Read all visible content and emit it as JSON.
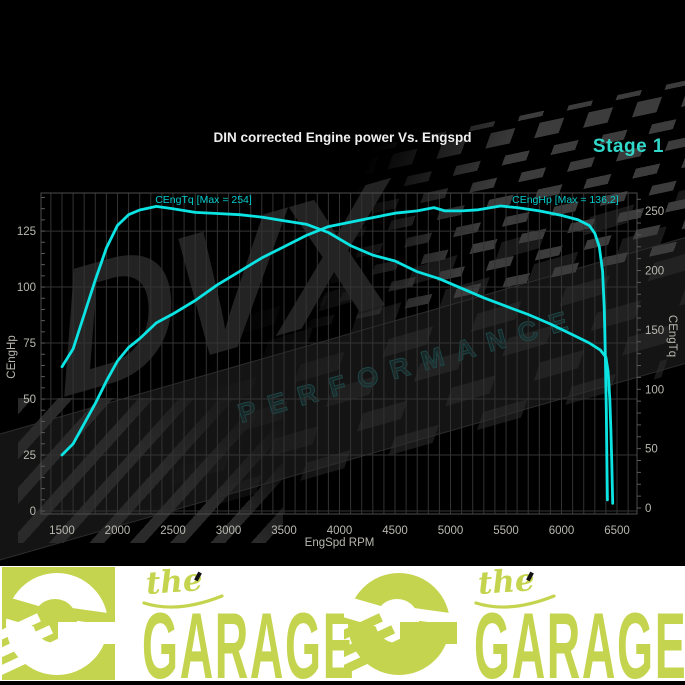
{
  "header": {
    "title": "DIN corrected Engine power Vs. Engspd",
    "stage_label": "Stage 1"
  },
  "watermark": {
    "brand": "DVX",
    "subbrand": "PERFORMANCE"
  },
  "colors": {
    "curve": "#0ce4e4",
    "annotation": "#00cdcd",
    "stage": "#31d8c9",
    "lime": "#c5d44f",
    "grid": "#333333",
    "border": "#4d4d4d",
    "tick_text": "#b9b8af"
  },
  "chart_data": {
    "type": "line",
    "title": "DIN corrected Engine power Vs. Engspd",
    "xlabel": "EngSpd RPM",
    "ylabel_left": "CEngHp",
    "ylabel_right": "CEngTq",
    "x_range": [
      1311,
      6680
    ],
    "left_range": [
      -1.34,
      142.0
    ],
    "right_range": [
      -5.05,
      265.3
    ],
    "x_ticks": [
      1500,
      2000,
      2500,
      3000,
      3500,
      4000,
      4500,
      5000,
      5500,
      6000,
      6500
    ],
    "left_ticks": [
      0,
      25,
      50,
      75,
      100,
      125
    ],
    "right_ticks": [
      0,
      50,
      100,
      150,
      200,
      250
    ],
    "x_minor_step": 100,
    "left_minor_step": 5,
    "right_minor_step": 10,
    "grid": true,
    "legend_position": "none",
    "series": [
      {
        "name": "CEngTq",
        "axis": "right",
        "annotation": "CEngTq [Max = 254]",
        "label_rpm": 2340,
        "max": 254,
        "points": [
          [
            1500,
            119
          ],
          [
            1600,
            134
          ],
          [
            1700,
            163
          ],
          [
            1800,
            192
          ],
          [
            1900,
            219
          ],
          [
            2000,
            238
          ],
          [
            2100,
            247
          ],
          [
            2200,
            251
          ],
          [
            2350,
            254
          ],
          [
            2500,
            252
          ],
          [
            2700,
            249
          ],
          [
            2900,
            248
          ],
          [
            3100,
            247
          ],
          [
            3300,
            245
          ],
          [
            3500,
            242
          ],
          [
            3700,
            239
          ],
          [
            3900,
            232
          ],
          [
            4100,
            221
          ],
          [
            4300,
            213
          ],
          [
            4500,
            208
          ],
          [
            4700,
            199
          ],
          [
            4900,
            193
          ],
          [
            5100,
            185
          ],
          [
            5300,
            177
          ],
          [
            5500,
            170
          ],
          [
            5700,
            163
          ],
          [
            5900,
            155
          ],
          [
            6100,
            146
          ],
          [
            6250,
            139
          ],
          [
            6350,
            133
          ],
          [
            6400,
            127
          ],
          [
            6420,
            115
          ],
          [
            6435,
            92
          ],
          [
            6445,
            65
          ],
          [
            6453,
            38
          ],
          [
            6458,
            15
          ],
          [
            6461,
            4
          ]
        ]
      },
      {
        "name": "CEngHp",
        "axis": "left",
        "annotation": "CEngHp [Max = 136.2]",
        "label_rpm": 5555,
        "max": 136.2,
        "points": [
          [
            1500,
            25
          ],
          [
            1600,
            30
          ],
          [
            1700,
            39
          ],
          [
            1800,
            48
          ],
          [
            1900,
            58
          ],
          [
            2000,
            67
          ],
          [
            2100,
            73
          ],
          [
            2200,
            77
          ],
          [
            2350,
            84
          ],
          [
            2500,
            88
          ],
          [
            2700,
            94
          ],
          [
            2900,
            101
          ],
          [
            3100,
            107
          ],
          [
            3300,
            113
          ],
          [
            3500,
            118
          ],
          [
            3700,
            123
          ],
          [
            3900,
            127
          ],
          [
            4100,
            129
          ],
          [
            4300,
            131
          ],
          [
            4500,
            133
          ],
          [
            4700,
            134
          ],
          [
            4850,
            135.5
          ],
          [
            4950,
            134
          ],
          [
            5100,
            134
          ],
          [
            5250,
            134.5
          ],
          [
            5450,
            136.2
          ],
          [
            5600,
            135.5
          ],
          [
            5800,
            134
          ],
          [
            6000,
            132
          ],
          [
            6150,
            130
          ],
          [
            6250,
            127.5
          ],
          [
            6300,
            124
          ],
          [
            6340,
            118
          ],
          [
            6370,
            107
          ],
          [
            6385,
            90
          ],
          [
            6395,
            68
          ],
          [
            6403,
            45
          ],
          [
            6409,
            22
          ],
          [
            6413,
            5
          ]
        ]
      }
    ]
  },
  "banner": {
    "script_word": "the",
    "main_word": "GARAGE"
  }
}
